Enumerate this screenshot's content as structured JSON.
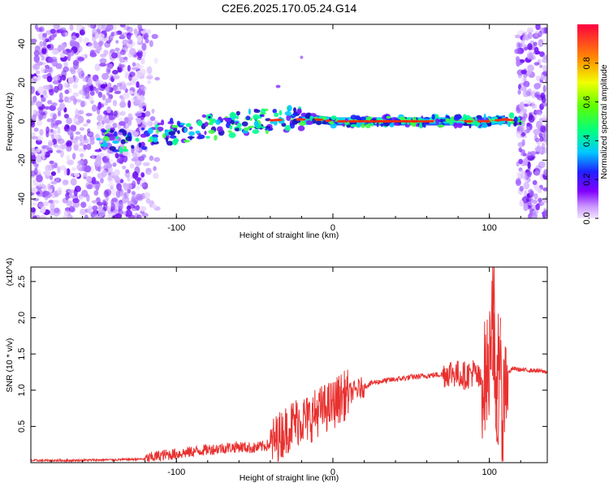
{
  "title": "C2E6.2025.170.05.24.G14",
  "colors": {
    "snr_line": "#e8312f",
    "spectrogram_low": "#7a1cff",
    "spectrogram_high": "#ff2a00"
  },
  "colorbar": {
    "label": "Normalized spectral amplitude",
    "ticks": [
      "0.0",
      "0.2",
      "0.4",
      "0.6",
      "0.8"
    ],
    "colormap": "rainbow (purple-blue-cyan-green-yellow-red)"
  },
  "chart_data": [
    {
      "type": "heatmap",
      "name": "spectrogram",
      "xlabel": "Height of straight line (km)",
      "ylabel": "Frequency (Hz)",
      "xlim": [
        -193,
        137
      ],
      "ylim": [
        -50,
        50
      ],
      "x_ticks": [
        "-100",
        "0",
        "100"
      ],
      "y_ticks": [
        "-40",
        "-20",
        "0",
        "20",
        "40"
      ],
      "value_range": [
        0,
        1
      ],
      "dominant_band": {
        "x": [
          -195,
          -150,
          -125,
          -110,
          -90,
          -70,
          -50,
          -30,
          -10,
          0,
          20,
          40,
          60,
          80,
          100,
          110,
          120,
          137
        ],
        "y_center": [
          -10,
          -10,
          -9,
          -6,
          -4,
          -2,
          0,
          1,
          1,
          0,
          0,
          0,
          0,
          0,
          0,
          1,
          0,
          -1
        ]
      }
    },
    {
      "type": "line",
      "name": "snr",
      "xlabel": "Height of straight line (km)",
      "ylabel": "SNR (10 * v/v)",
      "y_multiplier": "(x10^4)",
      "xlim": [
        -193,
        137
      ],
      "ylim": [
        0,
        2.7
      ],
      "x_ticks": [
        "-100",
        "0",
        "100"
      ],
      "y_ticks": [
        "0.5",
        "1.0",
        "1.5",
        "2.0",
        "2.5"
      ],
      "grid": false,
      "series": [
        {
          "x": [
            -193,
            -170,
            -140,
            -120,
            -110,
            -100,
            -90,
            -80,
            -70,
            -60,
            -50,
            -40,
            -35,
            -30,
            -25,
            -20,
            -15,
            -10,
            -5,
            0,
            5,
            10,
            15,
            20,
            25,
            30,
            40,
            50,
            60,
            70,
            75,
            80,
            85,
            90,
            95,
            100,
            102,
            104,
            106,
            108,
            110,
            115,
            120,
            130,
            137
          ],
          "y": [
            0.03,
            0.03,
            0.04,
            0.05,
            0.1,
            0.12,
            0.15,
            0.18,
            0.2,
            0.22,
            0.2,
            0.25,
            0.35,
            0.45,
            0.55,
            0.6,
            0.6,
            0.7,
            0.75,
            0.8,
            0.9,
            0.95,
            1.0,
            1.05,
            1.1,
            1.12,
            1.15,
            1.18,
            1.2,
            1.22,
            1.25,
            1.22,
            1.2,
            1.25,
            1.1,
            1.3,
            2.6,
            0.2,
            2.0,
            0.3,
            1.2,
            1.3,
            1.28,
            1.27,
            1.25
          ]
        }
      ]
    }
  ]
}
